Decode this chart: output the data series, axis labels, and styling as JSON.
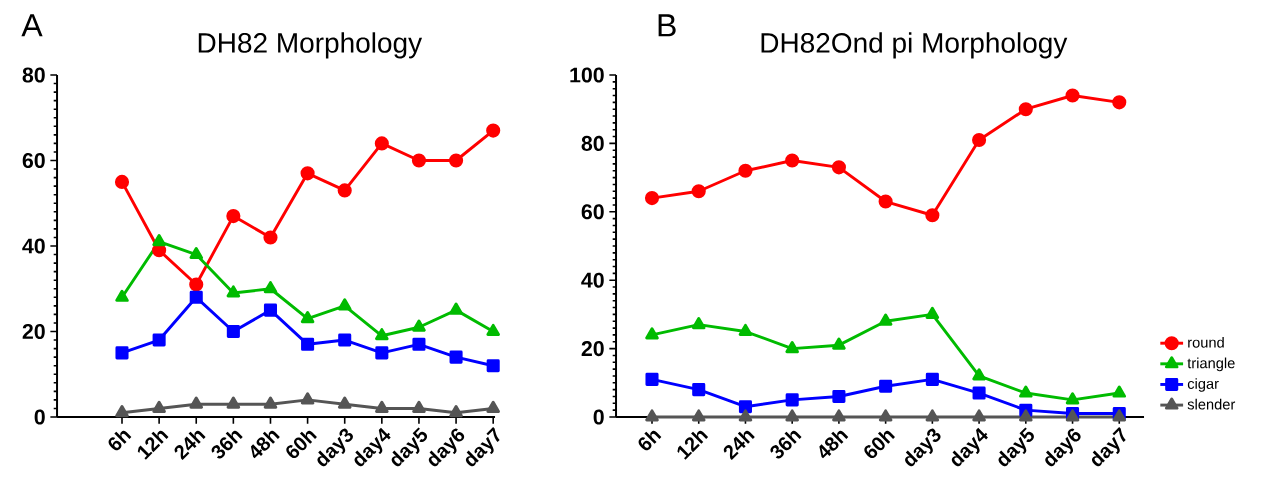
{
  "chart_data": [
    {
      "type": "line",
      "title": "DH82  Morphology",
      "annotations": [
        "A"
      ],
      "categories": [
        "6h",
        "12h",
        "24h",
        "36h",
        "48h",
        "60h",
        "day3",
        "day4",
        "day5",
        "day6",
        "day7"
      ],
      "ylim": [
        0,
        80
      ],
      "yticks": [
        0,
        20,
        40,
        60,
        80
      ],
      "grid": false,
      "legend": false,
      "series": [
        {
          "color": "#ff0000",
          "marker": "circle",
          "values": [
            55,
            39,
            31,
            47,
            42,
            57,
            53,
            64,
            60,
            60,
            67
          ]
        },
        {
          "color": "#00bb00",
          "marker": "triangle",
          "values": [
            28,
            41,
            38,
            29,
            30,
            23,
            26,
            19,
            21,
            25,
            20
          ]
        },
        {
          "color": "#0000ff",
          "marker": "square",
          "values": [
            15,
            18,
            28,
            20,
            25,
            17,
            18,
            15,
            17,
            14,
            12
          ]
        },
        {
          "color": "#555555",
          "marker": "triangle",
          "values": [
            1,
            2,
            3,
            3,
            3,
            4,
            3,
            2,
            2,
            1,
            2
          ]
        }
      ]
    },
    {
      "type": "line",
      "title": "DH82Ond pi  Morphology",
      "annotations": [
        "B"
      ],
      "categories": [
        "6h",
        "12h",
        "24h",
        "36h",
        "48h",
        "60h",
        "day3",
        "day4",
        "day5",
        "day6",
        "day7"
      ],
      "ylim": [
        0,
        100
      ],
      "yticks": [
        0,
        20,
        40,
        60,
        80,
        100
      ],
      "grid": false,
      "legend": "right",
      "series": [
        {
          "name": "round",
          "color": "#ff0000",
          "marker": "circle",
          "values": [
            64,
            66,
            72,
            75,
            73,
            63,
            59,
            81,
            90,
            94,
            92
          ]
        },
        {
          "name": "triangle",
          "color": "#00bb00",
          "marker": "triangle",
          "values": [
            24,
            27,
            25,
            20,
            21,
            28,
            30,
            12,
            7,
            5,
            7
          ]
        },
        {
          "name": "cigar",
          "color": "#0000ff",
          "marker": "square",
          "values": [
            11,
            8,
            3,
            5,
            6,
            9,
            11,
            7,
            2,
            1,
            1
          ]
        },
        {
          "name": "slender",
          "color": "#555555",
          "marker": "triangle",
          "values": [
            0,
            0,
            0,
            0,
            0,
            0,
            0,
            0,
            0,
            0,
            0
          ]
        }
      ]
    }
  ]
}
